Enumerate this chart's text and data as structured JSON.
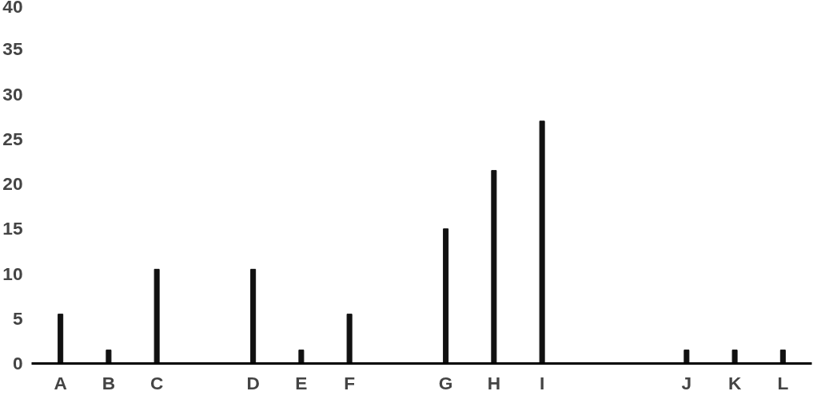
{
  "chart_data": {
    "type": "bar",
    "categories": [
      "A",
      "B",
      "C",
      null,
      "D",
      "E",
      "F",
      null,
      "G",
      "H",
      "I",
      null,
      null,
      "J",
      "K",
      "L"
    ],
    "values": [
      5.5,
      1.5,
      10.5,
      null,
      10.5,
      1.5,
      5.5,
      null,
      15,
      21.5,
      27,
      null,
      null,
      1.5,
      1.5,
      1.5
    ],
    "color": "#111111",
    "ylim": [
      0,
      40
    ],
    "yticks": [
      0,
      5,
      10,
      15,
      20,
      25,
      30,
      35,
      40
    ],
    "grid": false
  }
}
